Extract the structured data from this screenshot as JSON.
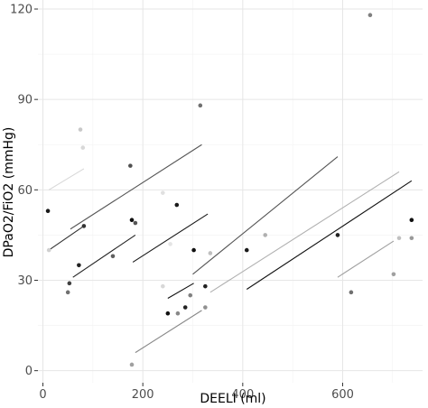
{
  "chart_data": {
    "type": "scatter",
    "title": "",
    "xlabel": "DEELI (ml)",
    "ylabel": "DPaO2/FiO2 (mmHg)",
    "xlim": [
      -10,
      760
    ],
    "ylim": [
      -4,
      123
    ],
    "x_ticks": [
      0,
      200,
      400,
      600
    ],
    "y_ticks": [
      0,
      30,
      60,
      90,
      120
    ],
    "grid": true,
    "legend": "none",
    "points": [
      {
        "x": 10,
        "y": 53,
        "color": "#1a1a1a"
      },
      {
        "x": 12,
        "y": 40,
        "color": "#d0d0d0"
      },
      {
        "x": 50,
        "y": 26,
        "color": "#707070"
      },
      {
        "x": 53,
        "y": 29,
        "color": "#404040"
      },
      {
        "x": 72,
        "y": 35,
        "color": "#222222"
      },
      {
        "x": 75,
        "y": 80,
        "color": "#c8c8c8"
      },
      {
        "x": 80,
        "y": 74,
        "color": "#d8d8d8"
      },
      {
        "x": 82,
        "y": 48,
        "color": "#333333"
      },
      {
        "x": 140,
        "y": 38,
        "color": "#606060"
      },
      {
        "x": 175,
        "y": 68,
        "color": "#505050"
      },
      {
        "x": 178,
        "y": 50,
        "color": "#111111"
      },
      {
        "x": 185,
        "y": 49,
        "color": "#555555"
      },
      {
        "x": 178,
        "y": 2,
        "color": "#a0a0a0"
      },
      {
        "x": 240,
        "y": 59,
        "color": "#e0e0e0"
      },
      {
        "x": 240,
        "y": 28,
        "color": "#d8d8d8"
      },
      {
        "x": 250,
        "y": 19,
        "color": "#111111"
      },
      {
        "x": 255,
        "y": 42,
        "color": "#e4e4e4"
      },
      {
        "x": 268,
        "y": 55,
        "color": "#1a1a1a"
      },
      {
        "x": 270,
        "y": 19,
        "color": "#888888"
      },
      {
        "x": 285,
        "y": 21,
        "color": "#222222"
      },
      {
        "x": 295,
        "y": 25,
        "color": "#808080"
      },
      {
        "x": 302,
        "y": 40,
        "color": "#111111"
      },
      {
        "x": 315,
        "y": 88,
        "color": "#707070"
      },
      {
        "x": 325,
        "y": 28,
        "color": "#222222"
      },
      {
        "x": 325,
        "y": 21,
        "color": "#909090"
      },
      {
        "x": 335,
        "y": 39,
        "color": "#c0c0c0"
      },
      {
        "x": 408,
        "y": 40,
        "color": "#1a1a1a"
      },
      {
        "x": 445,
        "y": 45,
        "color": "#b0b0b0"
      },
      {
        "x": 590,
        "y": 45,
        "color": "#222222"
      },
      {
        "x": 617,
        "y": 26,
        "color": "#707070"
      },
      {
        "x": 655,
        "y": 118,
        "color": "#808080"
      },
      {
        "x": 702,
        "y": 32,
        "color": "#a0a0a0"
      },
      {
        "x": 713,
        "y": 44,
        "color": "#c0c0c0"
      },
      {
        "x": 738,
        "y": 44,
        "color": "#999999"
      },
      {
        "x": 738,
        "y": 50,
        "color": "#111111"
      }
    ],
    "lines": [
      {
        "x1": 12,
        "y1": 60,
        "x2": 82,
        "y2": 67,
        "color": "#d8d8d8"
      },
      {
        "x1": 12,
        "y1": 40,
        "x2": 82,
        "y2": 48,
        "color": "#333333"
      },
      {
        "x1": 55,
        "y1": 47,
        "x2": 318,
        "y2": 75,
        "color": "#555555"
      },
      {
        "x1": 60,
        "y1": 31,
        "x2": 185,
        "y2": 45,
        "color": "#222222"
      },
      {
        "x1": 180,
        "y1": 36,
        "x2": 330,
        "y2": 52,
        "color": "#1a1a1a"
      },
      {
        "x1": 185,
        "y1": 6,
        "x2": 318,
        "y2": 20,
        "color": "#888888"
      },
      {
        "x1": 250,
        "y1": 24,
        "x2": 302,
        "y2": 29,
        "color": "#111111"
      },
      {
        "x1": 300,
        "y1": 32,
        "x2": 590,
        "y2": 71,
        "color": "#555555"
      },
      {
        "x1": 335,
        "y1": 26,
        "x2": 713,
        "y2": 66,
        "color": "#b0b0b0"
      },
      {
        "x1": 408,
        "y1": 27,
        "x2": 738,
        "y2": 63,
        "color": "#111111"
      },
      {
        "x1": 590,
        "y1": 31,
        "x2": 702,
        "y2": 43,
        "color": "#a0a0a0"
      }
    ]
  }
}
